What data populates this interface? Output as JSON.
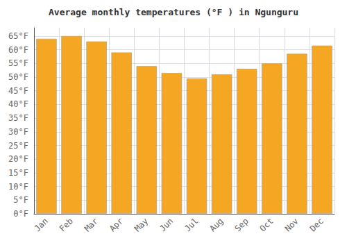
{
  "chart_data": {
    "type": "bar",
    "title": "Average monthly temperatures (°F ) in Ngunguru",
    "categories": [
      "Jan",
      "Feb",
      "Mar",
      "Apr",
      "May",
      "Jun",
      "Jul",
      "Aug",
      "Sep",
      "Oct",
      "Nov",
      "Dec"
    ],
    "values": [
      64.0,
      65.0,
      63.0,
      59.0,
      54.0,
      51.5,
      49.5,
      51.0,
      53.0,
      55.0,
      58.5,
      61.5
    ],
    "color": "#F5A623",
    "ylim": [
      0,
      68
    ],
    "yticks": [
      {
        "value": 0,
        "label": "0°F"
      },
      {
        "value": 5,
        "label": "5°F"
      },
      {
        "value": 10,
        "label": "10°F"
      },
      {
        "value": 15,
        "label": "15°F"
      },
      {
        "value": 20,
        "label": "20°F"
      },
      {
        "value": 25,
        "label": "25°F"
      },
      {
        "value": 30,
        "label": "30°F"
      },
      {
        "value": 35,
        "label": "35°F"
      },
      {
        "value": 40,
        "label": "40°F"
      },
      {
        "value": 45,
        "label": "45°F"
      },
      {
        "value": 50,
        "label": "50°F"
      },
      {
        "value": 55,
        "label": "55°F"
      },
      {
        "value": 60,
        "label": "60°F"
      },
      {
        "value": 65,
        "label": "65°F"
      }
    ],
    "grid": true
  }
}
